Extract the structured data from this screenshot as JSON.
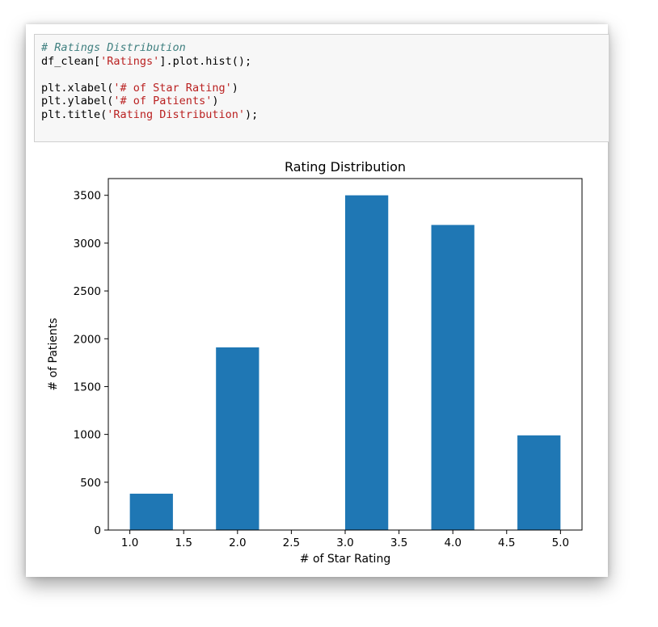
{
  "code_cell": {
    "lines": [
      [
        {
          "t": "# Ratings Distribution",
          "c": "comment"
        }
      ],
      [
        {
          "t": "df_clean[",
          "c": "plain"
        },
        {
          "t": "'Ratings'",
          "c": "string"
        },
        {
          "t": "].plot.hist();",
          "c": "plain"
        }
      ],
      [
        {
          "t": "",
          "c": "plain"
        }
      ],
      [
        {
          "t": "plt.xlabel(",
          "c": "plain"
        },
        {
          "t": "'# of Star Rating'",
          "c": "string"
        },
        {
          "t": ")",
          "c": "plain"
        }
      ],
      [
        {
          "t": "plt.ylabel(",
          "c": "plain"
        },
        {
          "t": "'# of Patients'",
          "c": "string"
        },
        {
          "t": ")",
          "c": "plain"
        }
      ],
      [
        {
          "t": "plt.title(",
          "c": "plain"
        },
        {
          "t": "'Rating Distribution'",
          "c": "string"
        },
        {
          "t": ");",
          "c": "plain"
        }
      ]
    ]
  },
  "chart_data": {
    "type": "bar",
    "title": "Rating Distribution",
    "xlabel": "# of Star Rating",
    "ylabel": "# of Patients",
    "xlim": [
      0.8,
      5.2
    ],
    "ylim": [
      0,
      3675
    ],
    "xticks": [
      1.0,
      1.5,
      2.0,
      2.5,
      3.0,
      3.5,
      4.0,
      4.5,
      5.0
    ],
    "xtick_labels": [
      "1.0",
      "1.5",
      "2.0",
      "2.5",
      "3.0",
      "3.5",
      "4.0",
      "4.5",
      "5.0"
    ],
    "yticks": [
      0,
      500,
      1000,
      1500,
      2000,
      2500,
      3000,
      3500
    ],
    "ytick_labels": [
      "0",
      "500",
      "1000",
      "1500",
      "2000",
      "2500",
      "3000",
      "3500"
    ],
    "bins": [
      {
        "x0": 1.0,
        "x1": 1.4,
        "value": 380
      },
      {
        "x0": 1.4,
        "x1": 1.8,
        "value": 0
      },
      {
        "x0": 1.8,
        "x1": 2.2,
        "value": 1910
      },
      {
        "x0": 2.2,
        "x1": 2.6,
        "value": 0
      },
      {
        "x0": 2.6,
        "x1": 3.0,
        "value": 0
      },
      {
        "x0": 3.0,
        "x1": 3.4,
        "value": 3500
      },
      {
        "x0": 3.4,
        "x1": 3.8,
        "value": 0
      },
      {
        "x0": 3.8,
        "x1": 4.2,
        "value": 3190
      },
      {
        "x0": 4.2,
        "x1": 4.6,
        "value": 0
      },
      {
        "x0": 4.6,
        "x1": 5.0,
        "value": 990
      }
    ],
    "bar_color": "#1f77b4",
    "grid": false,
    "legend": "none"
  }
}
